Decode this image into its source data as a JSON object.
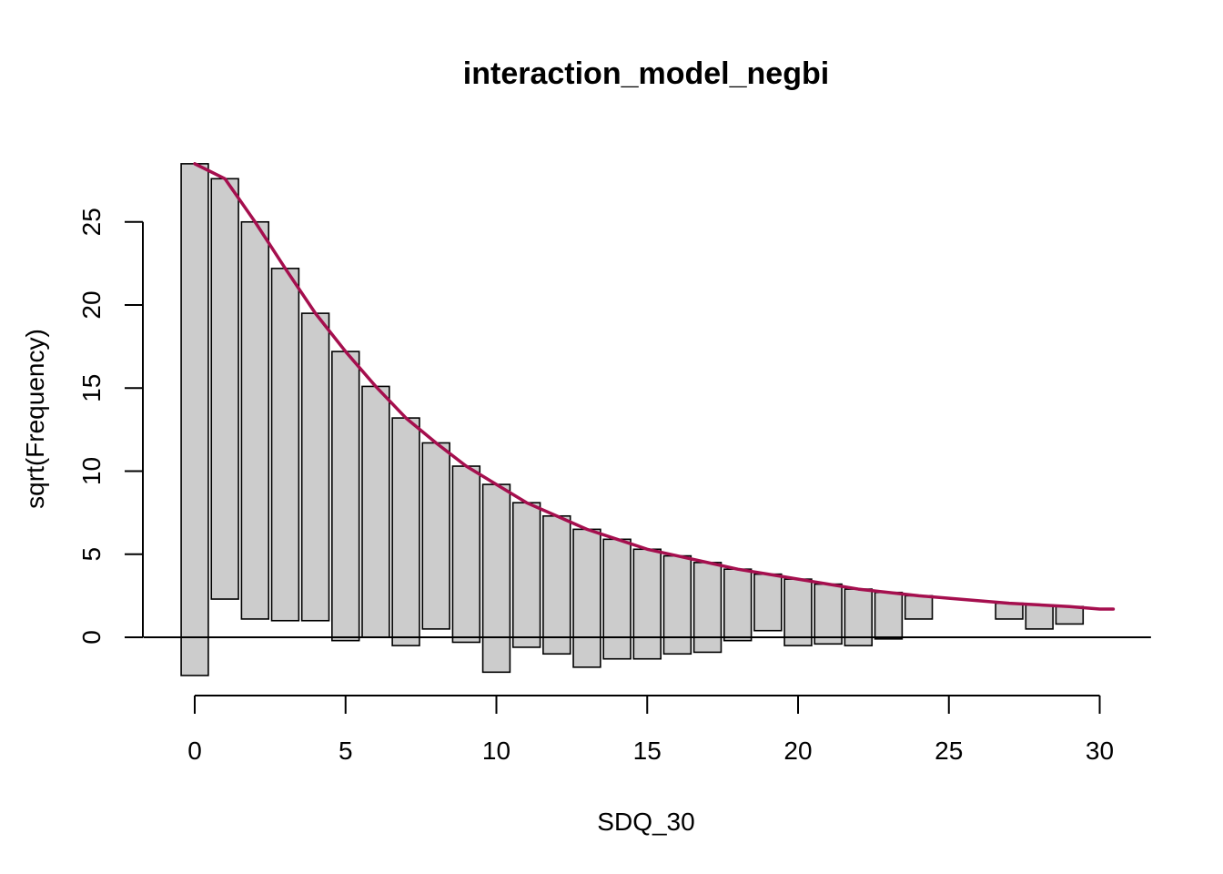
{
  "chart_data": {
    "type": "bar",
    "subtype": "hanging-rootogram",
    "title": "interaction_model_negbi",
    "xlabel": "SDQ_30",
    "ylabel": "sqrt(Frequency)",
    "xlim": [
      -1,
      31.5
    ],
    "ylim": [
      -2.5,
      28.6
    ],
    "x_ticks": [
      0,
      5,
      10,
      15,
      20,
      25,
      30
    ],
    "y_ticks": [
      0,
      5,
      10,
      15,
      20,
      25
    ],
    "grid": false,
    "legend": "none",
    "x": [
      0,
      1,
      2,
      3,
      4,
      5,
      6,
      7,
      8,
      9,
      10,
      11,
      12,
      13,
      14,
      15,
      16,
      17,
      18,
      19,
      20,
      21,
      22,
      23,
      24,
      25,
      26,
      27,
      28,
      29,
      30
    ],
    "expected_sqrt": [
      28.5,
      27.6,
      25.0,
      22.2,
      19.5,
      17.2,
      15.1,
      13.2,
      11.7,
      10.3,
      9.2,
      8.1,
      7.3,
      6.5,
      5.9,
      5.3,
      4.9,
      4.5,
      4.1,
      3.8,
      3.5,
      3.2,
      2.9,
      2.7,
      2.5,
      2.35,
      2.2,
      2.05,
      1.95,
      1.85,
      1.7
    ],
    "bar_bottom": [
      -2.3,
      2.3,
      1.1,
      1.0,
      1.0,
      -0.2,
      0.0,
      -0.5,
      0.5,
      -0.3,
      -2.1,
      -0.6,
      -1.0,
      -1.8,
      -1.3,
      -1.3,
      -1.0,
      -0.9,
      -0.2,
      0.4,
      -0.5,
      -0.4,
      -0.5,
      -0.1,
      1.1,
      2.35,
      2.2,
      1.1,
      0.5,
      0.8,
      1.7
    ],
    "colors": {
      "bar_fill": "#cccccc",
      "bar_stroke": "#000000",
      "fit_line": "#a50f4e"
    }
  }
}
